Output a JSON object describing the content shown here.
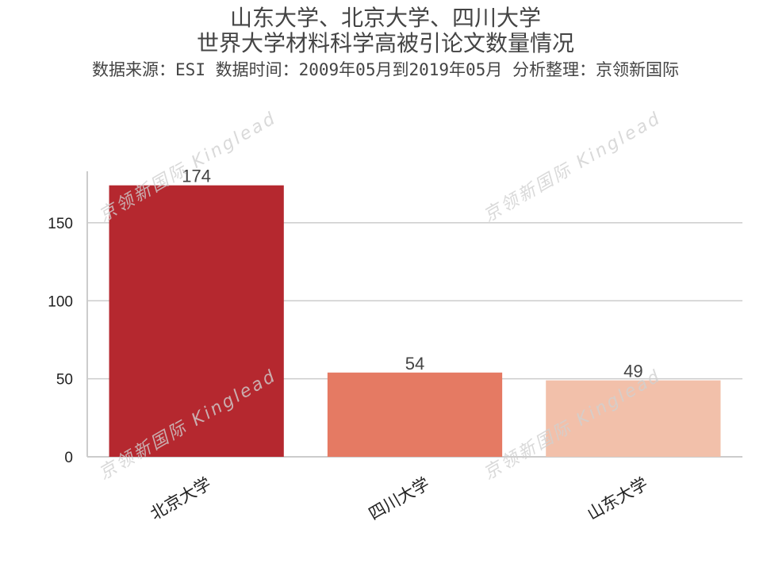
{
  "titles": {
    "line1": "山东大学、北京大学、四川大学",
    "line2": "世界大学材料科学高被引论文数量情况",
    "subtitle": "数据来源：ESI 数据时间：2009年05月到2019年05月 分析整理：京领新国际"
  },
  "watermark": "京领新国际 Kinglead",
  "chart_data": {
    "type": "bar",
    "categories": [
      "北京大学",
      "四川大学",
      "山东大学"
    ],
    "values": [
      174,
      54,
      49
    ],
    "colors": [
      "#b5282f",
      "#e57a63",
      "#f2c0aa"
    ],
    "yticks": [
      0,
      50,
      100,
      150
    ],
    "ylim": [
      0,
      183
    ],
    "grid": true
  }
}
